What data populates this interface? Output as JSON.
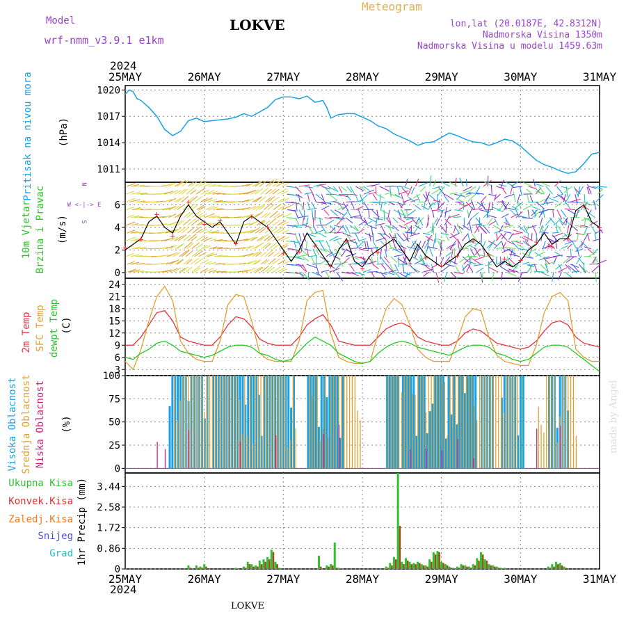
{
  "header": {
    "model_label": "Model",
    "model_name": "wrf-nmm_v3.9.1 e1km",
    "station": "LOKVE",
    "product": "Meteogram",
    "coords": "lon,lat (20.0187E, 42.8312N)",
    "elevation": "Nadmorska Visina 1350m",
    "model_elevation": "Nadmorska Visina u modelu 1459.63m",
    "footer_station": "LOKVE",
    "credit": "made by Angel"
  },
  "time_axis": {
    "year": "2024",
    "labels": [
      "25MAY",
      "26MAY",
      "27MAY",
      "28MAY",
      "29MAY",
      "30MAY",
      "31MAY"
    ]
  },
  "colors": {
    "pressure": "#1aa0e6",
    "temp2m": "#e8303a",
    "sfc_temp": "#e0a030",
    "dewpoint": "#22c822",
    "cloud_high": "#1aa0e6",
    "cloud_mid": "#e0a030",
    "cloud_low": "#d0207a",
    "precip_total": "#30c030",
    "precip_conv": "#e03030",
    "precip_frozen": "#f07820",
    "snow": "#5050e0",
    "hail": "#20c0c0",
    "model_purple": "#9944cc",
    "meteogram_gold": "#e0b050"
  },
  "chart_data": [
    {
      "type": "line",
      "title": "Pritisak na nivou mora",
      "ylabel": "(hPa)",
      "ylim": [
        1009.5,
        1020.5
      ],
      "yticks": [
        "1011",
        "1014",
        "1017",
        "1020"
      ],
      "ytick_values": [
        1011,
        1014,
        1017,
        1020
      ],
      "grid": true,
      "x_days": [
        0,
        0.05,
        0.1,
        0.15,
        0.2,
        0.3,
        0.4,
        0.5,
        0.6,
        0.7,
        0.8,
        0.9,
        1.0,
        1.1,
        1.2,
        1.3,
        1.4,
        1.5,
        1.6,
        1.7,
        1.8,
        1.9,
        2.0,
        2.1,
        2.2,
        2.3,
        2.4,
        2.5,
        2.55,
        2.6,
        2.7,
        2.8,
        2.9,
        3.0,
        3.1,
        3.2,
        3.3,
        3.4,
        3.5,
        3.6,
        3.7,
        3.8,
        3.9,
        4.0,
        4.1,
        4.2,
        4.3,
        4.4,
        4.5,
        4.6,
        4.7,
        4.8,
        4.9,
        5.0,
        5.1,
        5.2,
        5.3,
        5.4,
        5.5,
        5.6,
        5.7,
        5.8,
        5.9,
        6.0
      ],
      "series": [
        {
          "values": [
            1019.5,
            1020.0,
            1019.8,
            1019.0,
            1018.8,
            1018.0,
            1017.0,
            1015.5,
            1014.8,
            1015.3,
            1016.5,
            1016.8,
            1016.4,
            1016.5,
            1016.6,
            1016.7,
            1016.9,
            1017.3,
            1017.0,
            1017.5,
            1018.0,
            1018.9,
            1019.2,
            1019.2,
            1019.0,
            1019.3,
            1018.6,
            1018.8,
            1018.0,
            1016.8,
            1017.2,
            1017.3,
            1017.3,
            1016.9,
            1016.5,
            1015.9,
            1015.6,
            1015.0,
            1014.6,
            1014.2,
            1013.7,
            1014.0,
            1014.1,
            1014.6,
            1015.1,
            1014.8,
            1014.4,
            1014.1,
            1014.0,
            1013.7,
            1014.0,
            1014.4,
            1014.2,
            1013.6,
            1012.8,
            1012.0,
            1011.5,
            1011.2,
            1010.8,
            1010.5,
            1010.7,
            1011.6,
            1012.7,
            1012.9
          ]
        }
      ]
    },
    {
      "type": "line",
      "title": "10m Vjetar Brzina i Pravac",
      "ylabel": "(m/s)",
      "ylim": [
        -0.5,
        8
      ],
      "yticks": [
        "0",
        "2",
        "4",
        "6"
      ],
      "ytick_values": [
        0,
        2,
        4,
        6
      ],
      "grid": true,
      "compass": "N W<-|->E S",
      "x_days": [
        0,
        0.1,
        0.2,
        0.3,
        0.4,
        0.5,
        0.6,
        0.7,
        0.8,
        0.9,
        1.0,
        1.1,
        1.2,
        1.3,
        1.4,
        1.5,
        1.6,
        1.7,
        1.8,
        1.9,
        2.0,
        2.1,
        2.2,
        2.3,
        2.4,
        2.5,
        2.6,
        2.7,
        2.8,
        2.9,
        3.0,
        3.1,
        3.2,
        3.3,
        3.4,
        3.5,
        3.6,
        3.7,
        3.8,
        3.9,
        4.0,
        4.1,
        4.2,
        4.3,
        4.4,
        4.5,
        4.6,
        4.7,
        4.8,
        4.9,
        5.0,
        5.1,
        5.2,
        5.3,
        5.4,
        5.5,
        5.6,
        5.7,
        5.8,
        5.9,
        6.0
      ],
      "series": [
        {
          "values": [
            2.0,
            2.5,
            3.0,
            4.5,
            5.0,
            4.0,
            3.5,
            5.0,
            6.0,
            5.0,
            4.5,
            4.0,
            4.5,
            3.5,
            2.5,
            4.5,
            5.0,
            4.5,
            4.0,
            3.0,
            2.0,
            1.0,
            2.0,
            3.5,
            2.5,
            1.5,
            0.5,
            2.0,
            3.0,
            1.0,
            0.5,
            1.5,
            2.0,
            2.5,
            3.0,
            2.0,
            1.0,
            2.5,
            1.5,
            1.0,
            0.5,
            1.0,
            1.5,
            2.5,
            3.0,
            2.5,
            1.5,
            0.5,
            1.0,
            0.5,
            1.0,
            2.0,
            2.5,
            3.5,
            2.5,
            3.0,
            3.0,
            5.5,
            6.0,
            4.5,
            4.0
          ]
        }
      ]
    },
    {
      "type": "line",
      "title": "2m Temp / SFC Temp / dewpt Temp",
      "ylabel": "(C)",
      "ylim": [
        1.5,
        25.5
      ],
      "yticks": [
        "3",
        "6",
        "9",
        "12",
        "15",
        "18",
        "21",
        "24"
      ],
      "ytick_values": [
        3,
        6,
        9,
        12,
        15,
        18,
        21,
        24
      ],
      "grid": true,
      "x_days": [
        0,
        0.1,
        0.2,
        0.3,
        0.4,
        0.5,
        0.6,
        0.7,
        0.8,
        0.9,
        1.0,
        1.1,
        1.2,
        1.3,
        1.4,
        1.5,
        1.6,
        1.7,
        1.8,
        1.9,
        2.0,
        2.1,
        2.2,
        2.3,
        2.4,
        2.5,
        2.6,
        2.7,
        2.8,
        2.9,
        3.0,
        3.1,
        3.2,
        3.3,
        3.4,
        3.5,
        3.6,
        3.7,
        3.8,
        3.9,
        4.0,
        4.1,
        4.2,
        4.3,
        4.4,
        4.5,
        4.6,
        4.7,
        4.8,
        4.9,
        5.0,
        5.1,
        5.2,
        5.3,
        5.4,
        5.5,
        5.6,
        5.7,
        5.8,
        5.9,
        6.0
      ],
      "series": [
        {
          "name": "2m Temp",
          "values": [
            9,
            9,
            11,
            14,
            17,
            17.5,
            15,
            11,
            10,
            9.5,
            9,
            9,
            11,
            14,
            16,
            15.5,
            13.5,
            10.5,
            9.5,
            9,
            9,
            9,
            11,
            14,
            15.5,
            16.5,
            14,
            10,
            9.5,
            9,
            9,
            9,
            11,
            13,
            14,
            14.5,
            13.5,
            11,
            10,
            9.5,
            9,
            9,
            10,
            12,
            13,
            12.5,
            11,
            9.5,
            9,
            8.5,
            8,
            8.5,
            10,
            12.5,
            14.5,
            15,
            14,
            11,
            9.5,
            9,
            8.5
          ]
        },
        {
          "name": "SFC Temp",
          "values": [
            5,
            3,
            8,
            15,
            21,
            23.5,
            20,
            10,
            7,
            5.5,
            5,
            5,
            10,
            19,
            21.5,
            21,
            15,
            7,
            5.5,
            5,
            5,
            5,
            10,
            20,
            22,
            22.5,
            12,
            6,
            5,
            4.5,
            4.5,
            5,
            12,
            18,
            20.5,
            19,
            14,
            8,
            6,
            5,
            5,
            5,
            10,
            16,
            18,
            17.5,
            11,
            6.5,
            5,
            4.5,
            4,
            4,
            9,
            17,
            21,
            22,
            20,
            8,
            6,
            5,
            5
          ]
        },
        {
          "name": "dewpt Temp",
          "values": [
            6,
            5.5,
            7,
            8,
            9.5,
            10,
            9,
            7.5,
            7,
            6.5,
            6,
            6.5,
            7.5,
            8.5,
            9,
            9,
            8.5,
            7,
            6.5,
            5.5,
            5,
            5.5,
            7.5,
            9.5,
            11,
            10,
            9,
            7,
            6,
            5,
            4.5,
            5,
            7,
            8.5,
            9.5,
            10,
            9.5,
            8.5,
            8,
            7.5,
            7,
            6.5,
            7.5,
            8.5,
            9,
            9,
            8.5,
            7,
            6.5,
            5.5,
            5,
            5.5,
            7,
            8.5,
            9,
            9,
            8.5,
            7,
            5.5,
            4,
            2.5
          ]
        }
      ]
    },
    {
      "type": "bar",
      "title": "Visoka Oblacnost / Srednja Oblacnost / Niska Oblacnost",
      "ylabel": "(%)",
      "ylim": [
        -5,
        100
      ],
      "yticks": [
        "0",
        "25",
        "50",
        "75",
        "100"
      ],
      "ytick_values": [
        0,
        25,
        50,
        75,
        100
      ],
      "grid": true,
      "high_cloud_periods_days": [
        [
          0.55,
          1.05
        ],
        [
          1.1,
          2.15
        ],
        [
          2.3,
          2.75
        ],
        [
          3.3,
          3.45
        ],
        [
          3.5,
          4.45
        ],
        [
          4.5,
          4.65
        ],
        [
          4.75,
          5.05
        ],
        [
          5.35,
          5.6
        ]
      ],
      "mid_cloud_periods_days": [
        [
          0.6,
          2.15
        ],
        [
          2.3,
          2.95
        ],
        [
          3.3,
          4.95
        ],
        [
          5.2,
          5.7
        ]
      ],
      "low_cloud_spikes_days": [
        0.4,
        0.5,
        0.8,
        1.45,
        1.9,
        2.5,
        2.7,
        3.6,
        3.8,
        4.0,
        4.2,
        4.4,
        5.2,
        5.5
      ]
    },
    {
      "type": "bar",
      "title": "Ukupna Kisa / Konvek.Kisa / Zaledj.Kisa / Snijeg / Grad",
      "ylabel": "1hr Precip (mm)",
      "ylim": [
        0,
        4.0
      ],
      "yticks": [
        "0",
        "0.86",
        "1.72",
        "2.58",
        "3.44"
      ],
      "ytick_values": [
        0,
        0.86,
        1.72,
        2.58,
        3.44
      ],
      "grid": true,
      "x_days": [
        0.8,
        0.9,
        0.95,
        1.0,
        1.4,
        1.5,
        1.55,
        1.6,
        1.65,
        1.7,
        1.75,
        1.8,
        1.85,
        1.9,
        1.95,
        2.45,
        2.55,
        2.6,
        2.65,
        2.7,
        3.3,
        3.35,
        3.4,
        3.45,
        3.5,
        3.55,
        3.6,
        3.65,
        3.7,
        3.75,
        3.8,
        3.85,
        3.9,
        3.95,
        4.0,
        4.05,
        4.1,
        4.15,
        4.2,
        4.25,
        4.3,
        4.35,
        4.4,
        4.45,
        4.5,
        4.55,
        4.6,
        4.65,
        4.7,
        4.75,
        4.8,
        5.35,
        5.4,
        5.45,
        5.5,
        5.55
      ],
      "series": [
        {
          "name": "Ukupna Kisa",
          "values": [
            0.15,
            0.15,
            0.1,
            0.2,
            0.05,
            0.1,
            0.3,
            0.2,
            0.15,
            0.35,
            0.4,
            0.5,
            0.8,
            0.3,
            0.05,
            0.55,
            0.15,
            0.2,
            1.1,
            0.05,
            0.1,
            0.25,
            0.5,
            4.0,
            0.3,
            0.45,
            0.3,
            0.25,
            0.3,
            0.2,
            0.15,
            0.4,
            0.7,
            0.75,
            0.3,
            0.2,
            0.1,
            0.05,
            0.1,
            0.2,
            0.15,
            0.1,
            0.2,
            0.45,
            0.7,
            0.4,
            0.2,
            0.15,
            0.1,
            0.05,
            0.05,
            0.1,
            0.2,
            0.3,
            0.25,
            0.1
          ]
        },
        {
          "name": "Konvek.Kisa",
          "values": [
            0.05,
            0.05,
            0.05,
            0.1,
            0.02,
            0.05,
            0.2,
            0.1,
            0.1,
            0.2,
            0.3,
            0.4,
            0.7,
            0.2,
            0.02,
            0.1,
            0.1,
            0.15,
            0.05,
            0.02,
            0.05,
            0.15,
            0.4,
            1.8,
            0.2,
            0.35,
            0.2,
            0.2,
            0.25,
            0.15,
            0.1,
            0.3,
            0.6,
            0.7,
            0.25,
            0.15,
            0.05,
            0.02,
            0.05,
            0.15,
            0.1,
            0.05,
            0.15,
            0.35,
            0.6,
            0.35,
            0.15,
            0.1,
            0.05,
            0.02,
            0.02,
            0.05,
            0.1,
            0.2,
            0.15,
            0.05
          ]
        }
      ]
    }
  ]
}
